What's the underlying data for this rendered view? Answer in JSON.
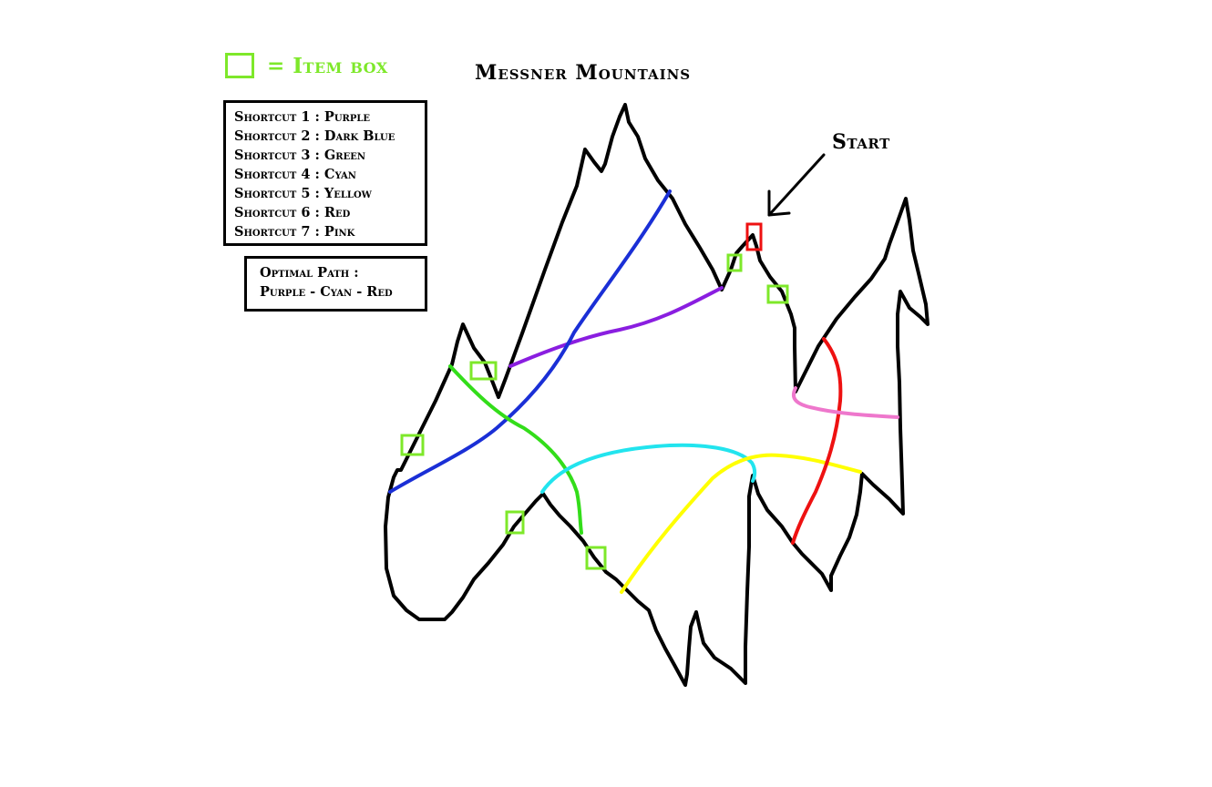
{
  "title": "Messner Mountains",
  "legend": {
    "item_box_label": "= Item box",
    "item_box_color": "#7ee82a"
  },
  "shortcuts": [
    {
      "label": "Shortcut 1 : Purple",
      "color": "#8a1ee0"
    },
    {
      "label": "Shortcut 2 : Dark Blue",
      "color": "#1a2fd6"
    },
    {
      "label": "Shortcut 3 : Green",
      "color": "#33dd1a"
    },
    {
      "label": "Shortcut 4 : Cyan",
      "color": "#22e4ee"
    },
    {
      "label": "Shortcut 5 : Yellow",
      "color": "#ffff00"
    },
    {
      "label": "Shortcut 6 : Red",
      "color": "#ee1111"
    },
    {
      "label": "Shortcut 7 : Pink",
      "color": "#ee77cc"
    }
  ],
  "optimal_path": {
    "label": "Optimal Path :",
    "value": "Purple - Cyan - Red"
  },
  "start": {
    "label": "Start",
    "marker_color": "#ee1111"
  },
  "track_color": "#000000"
}
